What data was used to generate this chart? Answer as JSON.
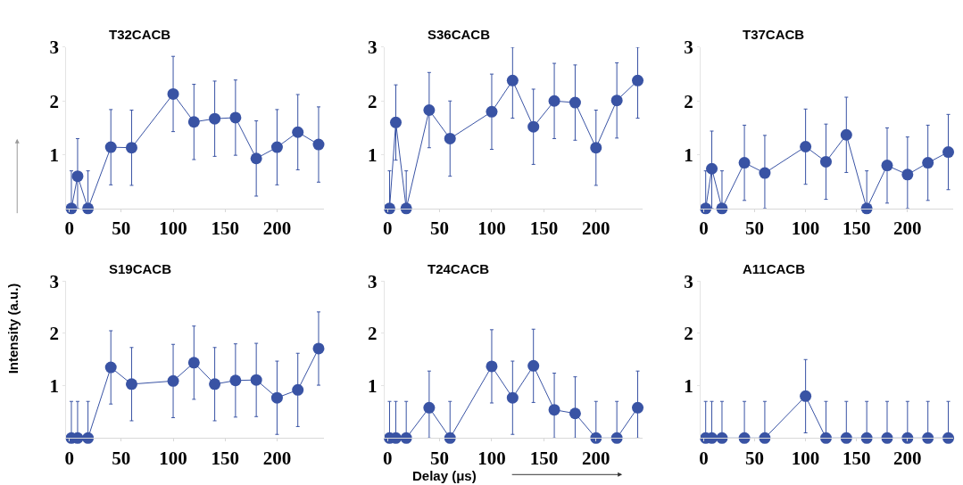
{
  "chart_data": [
    {
      "type": "line",
      "title": "T32CACB",
      "ylabel": "Intensity (a.u.)",
      "x": [
        2,
        8,
        18,
        40,
        60,
        100,
        120,
        140,
        160,
        180,
        200,
        220,
        240
      ],
      "xlim": [
        -3,
        245
      ],
      "ylim": [
        0,
        3
      ],
      "xticks": [
        0,
        50,
        100,
        150,
        200
      ],
      "yticks": [
        1,
        2,
        3
      ],
      "marker": "circle",
      "line_style": "solid",
      "series": [
        {
          "color": "#3953a4",
          "values": [
            0,
            0.6,
            0,
            1.14,
            1.13,
            2.13,
            1.61,
            1.67,
            1.69,
            0.93,
            1.14,
            1.42,
            1.19
          ],
          "errors": [
            [
              0,
              0.7
            ],
            [
              0,
              1.3
            ],
            [
              0,
              0.7
            ],
            0.7,
            0.7,
            0.7,
            0.7,
            0.7,
            0.7,
            0.7,
            0.7,
            0.7,
            0.7
          ]
        }
      ]
    },
    {
      "type": "line",
      "title": "S36CACB",
      "x": [
        2,
        8,
        18,
        40,
        60,
        100,
        120,
        140,
        160,
        180,
        200,
        220,
        240
      ],
      "xlim": [
        -3,
        245
      ],
      "ylim": [
        0,
        3
      ],
      "xticks": [
        0,
        50,
        100,
        150,
        200
      ],
      "yticks": [
        1,
        2,
        3
      ],
      "marker": "circle",
      "line_style": "solid",
      "series": [
        {
          "color": "#3953a4",
          "values": [
            0,
            1.6,
            0,
            1.83,
            1.3,
            1.8,
            2.38,
            1.52,
            2.0,
            1.97,
            1.13,
            2.01,
            2.38
          ],
          "errors": [
            [
              0,
              0.7
            ],
            0.7,
            [
              0,
              0.7
            ],
            0.7,
            0.7,
            0.7,
            [
              1.68,
              3
            ],
            0.7,
            0.7,
            0.7,
            0.7,
            0.7,
            [
              1.68,
              3
            ]
          ]
        }
      ]
    },
    {
      "type": "line",
      "title": "T37CACB",
      "x": [
        2,
        8,
        18,
        40,
        60,
        100,
        120,
        140,
        160,
        180,
        200,
        220,
        240
      ],
      "xlim": [
        -3,
        245
      ],
      "ylim": [
        0,
        3
      ],
      "xticks": [
        0,
        50,
        100,
        150,
        200
      ],
      "yticks": [
        1,
        2,
        3
      ],
      "marker": "circle",
      "line_style": "solid",
      "series": [
        {
          "color": "#3953a4",
          "values": [
            0,
            0.74,
            0,
            0.85,
            0.66,
            1.15,
            0.87,
            1.37,
            0,
            0.8,
            0.63,
            0.85,
            1.05
          ],
          "errors": [
            [
              0,
              0.7
            ],
            [
              0,
              1.44
            ],
            [
              0,
              0.7
            ],
            0.7,
            [
              0,
              1.36
            ],
            0.7,
            0.7,
            0.7,
            [
              0,
              0.7
            ],
            0.7,
            [
              0,
              1.33
            ],
            0.7,
            0.7
          ]
        }
      ]
    },
    {
      "type": "line",
      "title": "S19CACB",
      "x": [
        2,
        8,
        18,
        40,
        60,
        100,
        120,
        140,
        160,
        180,
        200,
        220,
        240
      ],
      "xlim": [
        -3,
        245
      ],
      "ylim": [
        0,
        3
      ],
      "xticks": [
        0,
        50,
        100,
        150,
        200
      ],
      "yticks": [
        1,
        2,
        3
      ],
      "marker": "circle",
      "line_style": "solid",
      "series": [
        {
          "color": "#3953a4",
          "values": [
            0,
            0,
            0,
            1.35,
            1.03,
            1.09,
            1.44,
            1.03,
            1.1,
            1.11,
            0.77,
            0.92,
            1.71
          ],
          "errors": [
            [
              0,
              0.7
            ],
            [
              0,
              0.7
            ],
            [
              0,
              0.7
            ],
            0.7,
            0.7,
            0.7,
            0.7,
            0.7,
            0.7,
            0.7,
            0.7,
            0.7,
            0.7
          ]
        }
      ]
    },
    {
      "type": "line",
      "title": "T24CACB",
      "xlabel": "Delay (μs)",
      "x": [
        2,
        8,
        18,
        40,
        60,
        100,
        120,
        140,
        160,
        180,
        200,
        220,
        240
      ],
      "xlim": [
        -3,
        245
      ],
      "ylim": [
        0,
        3
      ],
      "xticks": [
        0,
        50,
        100,
        150,
        200
      ],
      "yticks": [
        1,
        2,
        3
      ],
      "marker": "circle",
      "line_style": "solid",
      "series": [
        {
          "color": "#3953a4",
          "values": [
            0,
            0,
            0,
            0.58,
            0,
            1.37,
            0.77,
            1.38,
            0.54,
            0.47,
            0,
            0,
            0.58
          ],
          "errors": [
            [
              0,
              0.7
            ],
            [
              0,
              0.7
            ],
            [
              0,
              0.7
            ],
            [
              0,
              1.28
            ],
            [
              0,
              0.7
            ],
            0.7,
            0.7,
            0.7,
            [
              0,
              1.24
            ],
            [
              0,
              1.17
            ],
            [
              0,
              0.7
            ],
            [
              0,
              0.7
            ],
            [
              0,
              1.28
            ]
          ]
        }
      ]
    },
    {
      "type": "line",
      "title": "A11CACB",
      "x": [
        2,
        8,
        18,
        40,
        60,
        100,
        120,
        140,
        160,
        180,
        200,
        220,
        240
      ],
      "xlim": [
        -3,
        245
      ],
      "ylim": [
        0,
        3
      ],
      "xticks": [
        0,
        50,
        100,
        150,
        200
      ],
      "yticks": [
        1,
        2,
        3
      ],
      "marker": "circle",
      "line_style": "solid",
      "series": [
        {
          "color": "#3953a4",
          "values": [
            0,
            0,
            0,
            0,
            0,
            0.8,
            0,
            0,
            0,
            0,
            0,
            0,
            0
          ],
          "errors": [
            [
              0,
              0.7
            ],
            [
              0,
              0.7
            ],
            [
              0,
              0.7
            ],
            [
              0,
              0.7
            ],
            [
              0,
              0.7
            ],
            0.7,
            [
              0,
              0.7
            ],
            [
              0,
              0.7
            ],
            [
              0,
              0.7
            ],
            [
              0,
              0.7
            ],
            [
              0,
              0.7
            ],
            [
              0,
              0.7
            ],
            [
              0,
              0.7
            ]
          ]
        }
      ]
    }
  ]
}
